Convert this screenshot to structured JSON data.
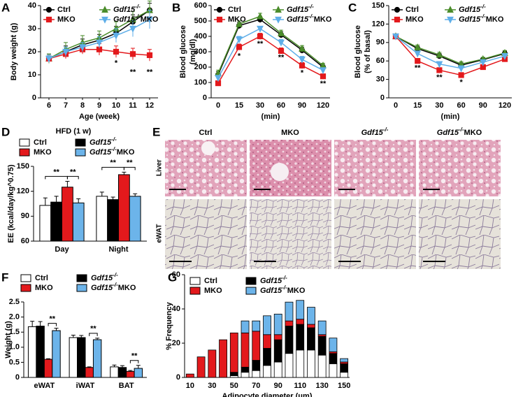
{
  "chart_data": [
    {
      "type": "line",
      "panel_label": "A",
      "x_label": "Age (week)",
      "y_label": [
        "Body weight (g)"
      ],
      "x": [
        6,
        7,
        8,
        9,
        10,
        11,
        12
      ],
      "xlim": [
        5.5,
        12.5
      ],
      "xticks": [
        6,
        7,
        8,
        9,
        10,
        11,
        12
      ],
      "ylim": [
        0,
        40
      ],
      "yticks": [
        0,
        10,
        20,
        30,
        40
      ],
      "legend": "upper left",
      "series": [
        {
          "name": "Ctrl",
          "color": "#000000",
          "marker": "circle",
          "values": [
            17,
            20,
            23,
            25,
            28,
            33,
            38
          ],
          "errors": [
            2,
            2.5,
            2.5,
            2.5,
            3,
            3,
            3
          ]
        },
        {
          "name": "Gdf15-/-",
          "color": "#4a8c2a",
          "marker": "triangle",
          "values": [
            17,
            21,
            24,
            26,
            30,
            34,
            38
          ],
          "errors": [
            2,
            3,
            3,
            3,
            3,
            3.5,
            4
          ]
        },
        {
          "name": "MKO",
          "color": "#e3191c",
          "marker": "square",
          "values": [
            17,
            19,
            21,
            21,
            20,
            19,
            18.5
          ],
          "errors": [
            1.5,
            2,
            2,
            2.5,
            2.5,
            2.5,
            2.5
          ]
        },
        {
          "name": "Gdf15-/-MKO",
          "color": "#5eaee8",
          "marker": "triangle-down",
          "values": [
            17,
            20,
            22,
            24,
            27,
            30,
            34
          ],
          "errors": [
            1.5,
            2,
            2,
            2.5,
            3,
            3.5,
            4
          ]
        }
      ],
      "annotations": [
        {
          "text": "*",
          "x": 10,
          "y": 15
        },
        {
          "text": "**",
          "x": 11,
          "y": 11
        },
        {
          "text": "**",
          "x": 12,
          "y": 11
        }
      ]
    },
    {
      "type": "line",
      "panel_label": "B",
      "x_label": "(min)",
      "y_label": [
        "Blood glucose",
        "(mg/dl)"
      ],
      "categories": [
        "0",
        "15",
        "30",
        "60",
        "90",
        "120"
      ],
      "ylim": [
        0,
        600
      ],
      "yticks": [
        0,
        100,
        200,
        300,
        400,
        500,
        600
      ],
      "legend": "upper left",
      "series": [
        {
          "name": "Ctrl",
          "color": "#000000",
          "marker": "circle",
          "values": [
            150,
            470,
            510,
            410,
            310,
            200
          ],
          "errors": [
            20,
            20,
            20,
            20,
            20,
            15
          ]
        },
        {
          "name": "Gdf15-/-",
          "color": "#4a8c2a",
          "marker": "triangle",
          "values": [
            160,
            480,
            530,
            420,
            320,
            210
          ],
          "errors": [
            20,
            20,
            20,
            20,
            20,
            15
          ]
        },
        {
          "name": "MKO",
          "color": "#e3191c",
          "marker": "square",
          "values": [
            95,
            330,
            400,
            305,
            210,
            140
          ],
          "errors": [
            10,
            20,
            20,
            20,
            20,
            15
          ]
        },
        {
          "name": "Gdf15-/-MKO",
          "color": "#5eaee8",
          "marker": "triangle-down",
          "values": [
            130,
            380,
            450,
            360,
            250,
            180
          ],
          "errors": [
            15,
            20,
            15,
            20,
            20,
            15
          ]
        }
      ],
      "annotations": [
        {
          "text": "*",
          "x": "15",
          "y": 270
        },
        {
          "text": "**",
          "x": "30",
          "y": 350
        },
        {
          "text": "**",
          "x": "60",
          "y": 260
        },
        {
          "text": "*",
          "x": "90",
          "y": 160
        },
        {
          "text": "**",
          "x": "120",
          "y": 90
        }
      ]
    },
    {
      "type": "line",
      "panel_label": "C",
      "x_label": "(min)",
      "y_label": [
        "Blood glucose",
        "(% of basal)"
      ],
      "categories": [
        "0",
        "15",
        "30",
        "60",
        "90",
        "120"
      ],
      "ylim": [
        0,
        150
      ],
      "yticks": [
        0,
        30,
        60,
        90,
        120,
        150
      ],
      "legend": "upper left",
      "series": [
        {
          "name": "Ctrl",
          "color": "#000000",
          "marker": "circle",
          "values": [
            100,
            80,
            68,
            53,
            62,
            72
          ],
          "errors": [
            2,
            4,
            4,
            4,
            3,
            4
          ]
        },
        {
          "name": "Gdf15-/-",
          "color": "#4a8c2a",
          "marker": "triangle",
          "values": [
            100,
            82,
            70,
            55,
            63,
            73
          ],
          "errors": [
            2,
            4,
            4,
            4,
            3,
            4
          ]
        },
        {
          "name": "MKO",
          "color": "#e3191c",
          "marker": "square",
          "values": [
            100,
            60,
            45,
            37,
            50,
            63
          ],
          "errors": [
            2,
            4,
            4,
            4,
            3,
            3
          ]
        },
        {
          "name": "Gdf15-/-MKO",
          "color": "#5eaee8",
          "marker": "triangle-down",
          "values": [
            100,
            72,
            55,
            48,
            58,
            68
          ],
          "errors": [
            2,
            4,
            4,
            4,
            3,
            4
          ]
        }
      ],
      "annotations": [
        {
          "text": "**",
          "x": "15",
          "y": 48
        },
        {
          "text": "**",
          "x": "30",
          "y": 33
        },
        {
          "text": "*",
          "x": "60",
          "y": 25
        }
      ]
    },
    {
      "type": "bar",
      "panel_label": "D",
      "title": "HFD (1 w)",
      "y_label": [
        "EE (kcal/day/kg^0.75)"
      ],
      "categories": [
        "Day",
        "Night"
      ],
      "ylim": [
        60,
        150
      ],
      "yticks": [
        60,
        90,
        120,
        150
      ],
      "legend": "upper left",
      "series": [
        {
          "name": "Ctrl",
          "color": "#ffffff",
          "values": [
            103,
            114
          ],
          "errors": [
            9,
            5
          ]
        },
        {
          "name": "Gdf15-/-",
          "color": "#000000",
          "values": [
            107,
            110
          ],
          "errors": [
            7,
            3
          ]
        },
        {
          "name": "MKO",
          "color": "#e3191c",
          "values": [
            125,
            140
          ],
          "errors": [
            7,
            3
          ]
        },
        {
          "name": "Gdf15-/-MKO",
          "color": "#6cb4ea",
          "values": [
            106,
            114
          ],
          "errors": [
            5,
            3
          ]
        }
      ],
      "comparisons": [
        {
          "category": "Day",
          "from": "Ctrl",
          "to": "MKO",
          "text": "**"
        },
        {
          "category": "Day",
          "from": "MKO",
          "to": "Gdf15-/-MKO",
          "text": "**"
        },
        {
          "category": "Night",
          "from": "Ctrl",
          "to": "MKO",
          "text": "**"
        },
        {
          "category": "Night",
          "from": "MKO",
          "to": "Gdf15-/-MKO",
          "text": "**"
        }
      ]
    },
    {
      "type": "bar",
      "panel_label": "F",
      "y_label": [
        "Weight (g)"
      ],
      "categories": [
        "eWAT",
        "iWAT",
        "BAT"
      ],
      "ylim": [
        0,
        2.5
      ],
      "yticks": [
        0,
        0.5,
        {
          "value": 1,
          "label": "1.0"
        },
        1.5,
        {
          "value": 2,
          "label": "2.0"
        },
        2.5
      ],
      "legend": "upper left",
      "series": [
        {
          "name": "Ctrl",
          "color": "#ffffff",
          "values": [
            1.68,
            1.32,
            0.35
          ],
          "errors": [
            0.18,
            0.08,
            0.06
          ]
        },
        {
          "name": "Gdf15-/-",
          "color": "#000000",
          "values": [
            1.7,
            1.32,
            0.33
          ],
          "errors": [
            0.15,
            0.07,
            0.06
          ]
        },
        {
          "name": "MKO",
          "color": "#e3191c",
          "values": [
            0.6,
            0.33,
            0.2
          ],
          "errors": [
            0.02,
            0.02,
            0.03
          ]
        },
        {
          "name": "Gdf15-/-MKO",
          "color": "#6cb4ea",
          "values": [
            1.55,
            1.25,
            0.3
          ],
          "errors": [
            0.08,
            0.05,
            0.1
          ]
        }
      ],
      "comparisons": [
        {
          "category": "eWAT",
          "from": "MKO",
          "to": "Gdf15-/-MKO",
          "text": "**"
        },
        {
          "category": "iWAT",
          "from": "MKO",
          "to": "Gdf15-/-MKO",
          "text": "**"
        },
        {
          "category": "BAT",
          "from": "MKO",
          "to": "Gdf15-/-MKO",
          "text": "**"
        }
      ]
    },
    {
      "type": "stacked_bar",
      "panel_label": "G",
      "x_label": "Adipocyte diameter (μm)",
      "y_label": [
        "% Frequency"
      ],
      "categories": [
        10,
        null,
        30,
        null,
        50,
        null,
        70,
        null,
        90,
        null,
        110,
        null,
        130,
        null,
        150
      ],
      "ylim": [
        0,
        60
      ],
      "yticks": [
        0,
        20,
        40,
        60
      ],
      "legend": "upper left",
      "series": [
        {
          "name": "Ctrl",
          "color": "#ffffff",
          "values": [
            0,
            0,
            0,
            0,
            1,
            3,
            4,
            7,
            9,
            14,
            16,
            16,
            13,
            8,
            3
          ]
        },
        {
          "name": "Gdf15-/-",
          "color": "#000000",
          "values": [
            0,
            0,
            0,
            0,
            2,
            3,
            6,
            10,
            13,
            16,
            15,
            13,
            11,
            6,
            5
          ]
        },
        {
          "name": "MKO",
          "color": "#e3191c",
          "values": [
            2,
            12,
            16,
            22,
            23,
            20,
            17,
            8,
            3,
            3,
            3,
            2,
            1,
            1,
            1
          ]
        },
        {
          "name": "Gdf15-/-MKO",
          "color": "#6cb4ea",
          "values": [
            0,
            0,
            0,
            0,
            0,
            7,
            6,
            11,
            12,
            11,
            11,
            10,
            8,
            8,
            2
          ]
        }
      ]
    }
  ],
  "panel_e": {
    "panel_label": "E",
    "columns": [
      "Ctrl",
      "MKO",
      "Gdf15-/-",
      "Gdf15-/-MKO"
    ],
    "rows": [
      "Liver",
      "eWAT"
    ]
  }
}
